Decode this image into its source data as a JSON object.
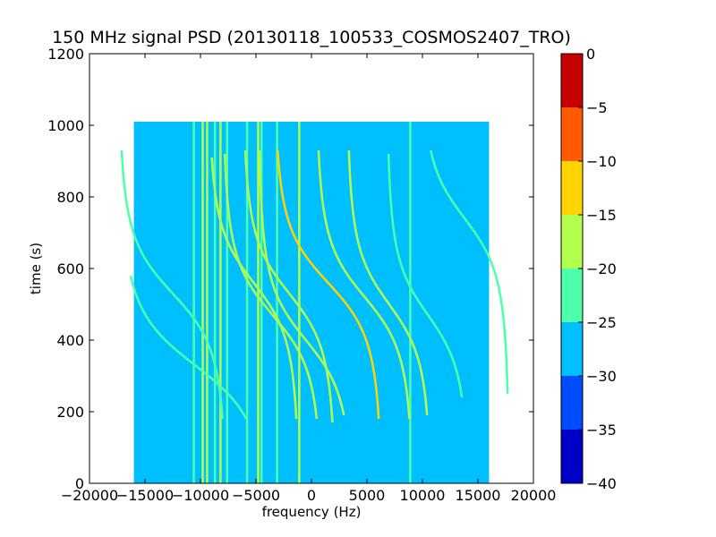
{
  "chart_data": {
    "type": "heatmap",
    "title": "150 MHz signal PSD (20130118_100533_COSMOS2407_TRO)",
    "xlabel": "frequency (Hz)",
    "ylabel": "time (s)",
    "xlim": [
      -20000,
      20000
    ],
    "ylim": [
      0,
      1200
    ],
    "x_ticks": [
      -20000,
      -15000,
      -10000,
      -5000,
      0,
      5000,
      10000,
      15000,
      20000
    ],
    "x_tick_labels": [
      "−20000",
      "−15000",
      "−10000",
      "−5000",
      "0",
      "5000",
      "10000",
      "15000",
      "20000"
    ],
    "y_ticks": [
      0,
      200,
      400,
      600,
      800,
      1000,
      1200
    ],
    "y_tick_labels": [
      "0",
      "200",
      "400",
      "600",
      "800",
      "1000",
      "1200"
    ],
    "data_extent": {
      "x": [
        -16000,
        16000
      ],
      "y": [
        0,
        1010
      ]
    },
    "background_level_db": -27.5,
    "colorbar": {
      "levels": [
        -40,
        -35,
        -30,
        -25,
        -20,
        -15,
        -10,
        -5,
        0
      ],
      "tick_labels": [
        "−40",
        "−35",
        "−30",
        "−25",
        "−20",
        "−15",
        "−10",
        "−5",
        "0"
      ],
      "colors": [
        "#0000c8",
        "#004cff",
        "#00bfff",
        "#4cffaa",
        "#b2ff4c",
        "#ffd400",
        "#ff5a00",
        "#c80000"
      ]
    },
    "vertical_lines": [
      {
        "x": -10600,
        "level_db": -22.5
      },
      {
        "x": -9800,
        "level_db": -17.5
      },
      {
        "x": -9400,
        "level_db": -17.5
      },
      {
        "x": -8700,
        "level_db": -22.5
      },
      {
        "x": -8200,
        "level_db": -17.5
      },
      {
        "x": -7600,
        "level_db": -22.5
      },
      {
        "x": -5800,
        "level_db": -22.5
      },
      {
        "x": -4800,
        "level_db": -17.5
      },
      {
        "x": -4500,
        "level_db": -22.5
      },
      {
        "x": -3100,
        "level_db": -22.5
      },
      {
        "x": -1100,
        "level_db": -17.5
      },
      {
        "x": 8900,
        "level_db": -22.5
      }
    ],
    "doppler_traces": [
      {
        "center_x": -12500,
        "t0": 530,
        "amp": 5000,
        "t_start": 180,
        "t_end": 930,
        "level_db": -22.5
      },
      {
        "center_x": -10500,
        "t0": 330,
        "amp": 7000,
        "t_start": 180,
        "t_end": 580,
        "level_db": -22.5
      },
      {
        "center_x": -5200,
        "t0": 560,
        "amp": 4200,
        "t_start": 180,
        "t_end": 910,
        "level_db": -17.5
      },
      {
        "center_x": -3500,
        "t0": 470,
        "amp": 4600,
        "t_start": 180,
        "t_end": 920,
        "level_db": -17.5
      },
      {
        "center_x": -2000,
        "t0": 530,
        "amp": 4300,
        "t_start": 170,
        "t_end": 930,
        "level_db": -17.5
      },
      {
        "center_x": -500,
        "t0": 400,
        "amp": 4400,
        "t_start": 190,
        "t_end": 930,
        "level_db": -17.5
      },
      {
        "center_x": 1500,
        "t0": 560,
        "amp": 5000,
        "t_start": 180,
        "t_end": 930,
        "level_db": -12.5
      },
      {
        "center_x": 4800,
        "t0": 520,
        "amp": 4500,
        "t_start": 180,
        "t_end": 930,
        "level_db": -17.5
      },
      {
        "center_x": 7000,
        "t0": 500,
        "amp": 3900,
        "t_start": 190,
        "t_end": 930,
        "level_db": -17.5
      },
      {
        "center_x": 10500,
        "t0": 470,
        "amp": 3800,
        "t_start": 240,
        "t_end": 920,
        "level_db": -22.5
      },
      {
        "center_x": 13800,
        "t0": 740,
        "amp": 4100,
        "t_start": 250,
        "t_end": 930,
        "level_db": -22.5
      }
    ]
  }
}
